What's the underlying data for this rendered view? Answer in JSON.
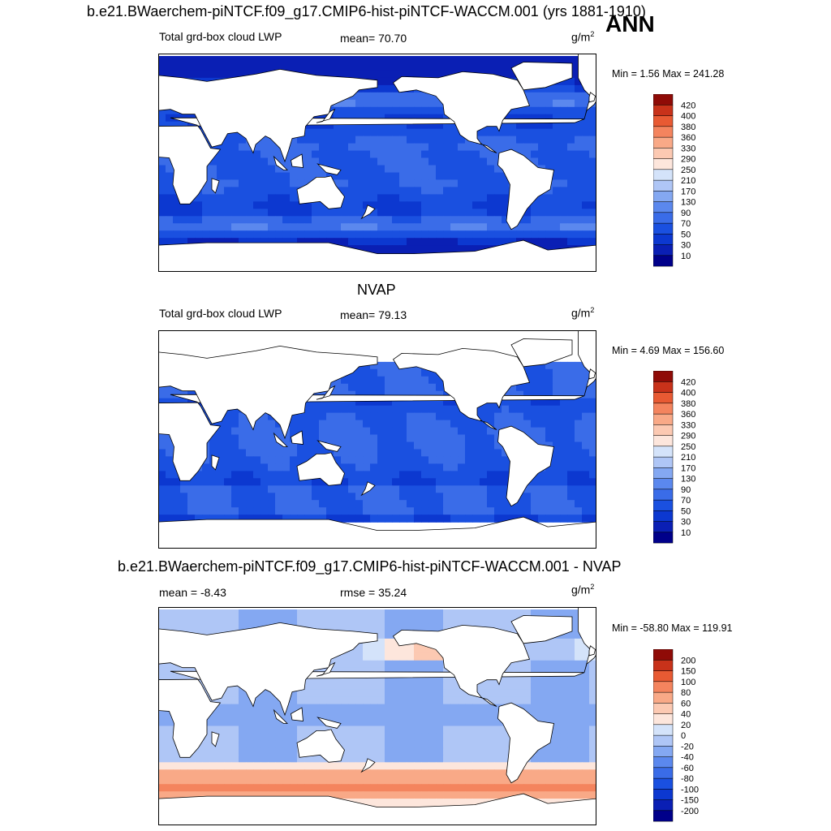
{
  "figure": {
    "title": "b.e21.BWaerchem-piNTCF.f09_g17.CMIP6-hist-piNTCF-WACCM.001 (yrs 1881-1910)",
    "season": "ANN"
  },
  "panels": [
    {
      "id": "model",
      "panel_title": "",
      "left_label": "Total grd-box cloud LWP",
      "center_label": "mean=  70.70",
      "units_base": "g/m",
      "units_exp": "2",
      "minmax": "Min =   1.56 Max = 241.28"
    },
    {
      "id": "obs",
      "panel_title": "NVAP",
      "left_label": "Total grd-box cloud LWP",
      "center_label": "mean=  79.13",
      "units_base": "g/m",
      "units_exp": "2",
      "minmax": "Min =   4.69 Max = 156.60"
    },
    {
      "id": "diff",
      "panel_title": "b.e21.BWaerchem-piNTCF.f09_g17.CMIP6-hist-piNTCF-WACCM.001 - NVAP",
      "left_label": "mean =  -8.43",
      "center_label": "rmse =  35.24",
      "units_base": "g/m",
      "units_exp": "2",
      "minmax": "Min = -58.80 Max = 119.91"
    }
  ],
  "chart_data": [
    {
      "type": "heatmap",
      "subtype": "global filled-contour map",
      "variable": "Total grd-box cloud LWP",
      "units": "g/m2",
      "mean": 70.7,
      "min": 1.56,
      "max": 241.28,
      "colorbar_levels": [
        10,
        30,
        50,
        70,
        90,
        130,
        170,
        210,
        250,
        290,
        330,
        360,
        380,
        400,
        420
      ],
      "colorbar_colors": [
        "#00008a",
        "#0a1fb4",
        "#0c38d0",
        "#1a50e0",
        "#3a6ce8",
        "#5b88ee",
        "#84a8f2",
        "#afc6f6",
        "#d4e3fa",
        "#fde6dc",
        "#fcc9b2",
        "#f9a987",
        "#f4845e",
        "#e85a33",
        "#c8321a",
        "#8f0b07"
      ]
    },
    {
      "type": "heatmap",
      "subtype": "global filled-contour map",
      "variable": "Total grd-box cloud LWP",
      "units": "g/m2",
      "mean": 79.13,
      "min": 4.69,
      "max": 156.6,
      "colorbar_levels": [
        10,
        30,
        50,
        70,
        90,
        130,
        170,
        210,
        250,
        290,
        330,
        360,
        380,
        400,
        420
      ],
      "colorbar_colors": [
        "#00008a",
        "#0a1fb4",
        "#0c38d0",
        "#1a50e0",
        "#3a6ce8",
        "#5b88ee",
        "#84a8f2",
        "#afc6f6",
        "#d4e3fa",
        "#fde6dc",
        "#fcc9b2",
        "#f9a987",
        "#f4845e",
        "#e85a33",
        "#c8321a",
        "#8f0b07"
      ]
    },
    {
      "type": "heatmap",
      "subtype": "global filled-contour difference map",
      "variable": "model - NVAP",
      "units": "g/m2",
      "mean": -8.43,
      "rmse": 35.24,
      "min": -58.8,
      "max": 119.91,
      "colorbar_levels": [
        -200,
        -150,
        -100,
        -80,
        -60,
        -40,
        -20,
        0,
        20,
        40,
        60,
        80,
        100,
        150,
        200
      ],
      "colorbar_colors": [
        "#00008a",
        "#0a1fb4",
        "#0c38d0",
        "#1a50e0",
        "#3a6ce8",
        "#5b88ee",
        "#84a8f2",
        "#afc6f6",
        "#d4e3fa",
        "#fde6dc",
        "#fcc9b2",
        "#f9a987",
        "#f4845e",
        "#e85a33",
        "#c8321a",
        "#8f0b07"
      ]
    }
  ]
}
